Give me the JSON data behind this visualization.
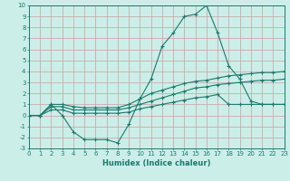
{
  "x": [
    0,
    1,
    2,
    3,
    4,
    5,
    6,
    7,
    8,
    9,
    10,
    11,
    12,
    13,
    14,
    15,
    16,
    17,
    18,
    19,
    20,
    21,
    22,
    23
  ],
  "line1": [
    0,
    0,
    1,
    0,
    -1.5,
    -2.2,
    -2.2,
    -2.2,
    -2.5,
    -0.8,
    1.5,
    3.3,
    6.3,
    7.5,
    9.0,
    9.2,
    10.0,
    7.5,
    4.5,
    3.3,
    1.3,
    1.0,
    1.0,
    1.0
  ],
  "line2": [
    0,
    0,
    1,
    1,
    0.8,
    0.7,
    0.7,
    0.7,
    0.7,
    1.0,
    1.5,
    2.0,
    2.3,
    2.6,
    2.9,
    3.1,
    3.2,
    3.4,
    3.6,
    3.7,
    3.8,
    3.9,
    3.9,
    4.0
  ],
  "line3": [
    0,
    0,
    0.8,
    0.8,
    0.5,
    0.5,
    0.5,
    0.5,
    0.5,
    0.7,
    1.0,
    1.3,
    1.6,
    1.9,
    2.2,
    2.5,
    2.6,
    2.8,
    2.9,
    3.0,
    3.1,
    3.2,
    3.2,
    3.3
  ],
  "line4": [
    0,
    0,
    0.5,
    0.5,
    0.2,
    0.2,
    0.2,
    0.2,
    0.2,
    0.3,
    0.6,
    0.8,
    1.0,
    1.2,
    1.4,
    1.6,
    1.7,
    1.9,
    1.0,
    1.0,
    1.0,
    1.0,
    1.0,
    1.0
  ],
  "color": "#1a7a6e",
  "bg_color": "#cceee8",
  "grid_color": "#c8a0a0",
  "xlabel": "Humidex (Indice chaleur)",
  "ylim": [
    -3,
    10
  ],
  "xlim": [
    0,
    23
  ],
  "yticks": [
    -3,
    -2,
    -1,
    0,
    1,
    2,
    3,
    4,
    5,
    6,
    7,
    8,
    9,
    10
  ],
  "xticks": [
    0,
    1,
    2,
    3,
    4,
    5,
    6,
    7,
    8,
    9,
    10,
    11,
    12,
    13,
    14,
    15,
    16,
    17,
    18,
    19,
    20,
    21,
    22,
    23
  ],
  "marker": "+",
  "markersize": 3,
  "linewidth": 0.8,
  "tick_fontsize": 5,
  "xlabel_fontsize": 6
}
